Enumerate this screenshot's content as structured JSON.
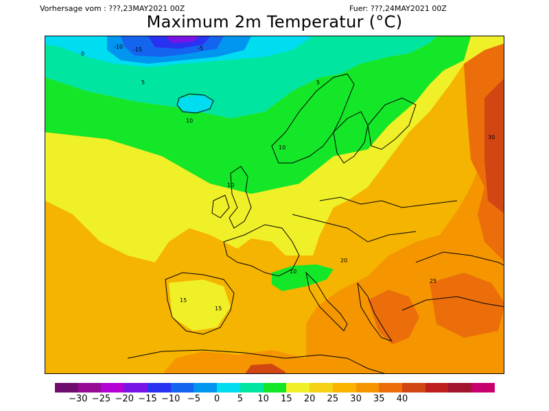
{
  "header": {
    "left": "Vorhersage vom : ???,23MAY2021 00Z",
    "right": "Fuer: ???,24MAY2021 00Z",
    "title": "Maximum 2m Temperatur (°C)"
  },
  "legend": {
    "colors": [
      "#6e0d6e",
      "#960a96",
      "#b400d2",
      "#7814e6",
      "#2832f0",
      "#1464f0",
      "#0096f0",
      "#00dcf0",
      "#00e6a0",
      "#14e628",
      "#f0f028",
      "#f5d214",
      "#fab400",
      "#f59600",
      "#eb6e0a",
      "#d24614",
      "#be1e1e",
      "#a0142d",
      "#c8006e"
    ],
    "labels": [
      "−30",
      "−25",
      "−20",
      "−15",
      "−10",
      "−5",
      "0",
      "5",
      "10",
      "15",
      "20",
      "25",
      "30",
      "35",
      "40"
    ]
  },
  "map": {
    "contour_labels": [
      "0",
      "-10",
      "-15",
      "-5",
      "5",
      "10",
      "5",
      "10",
      "10",
      "10",
      "15",
      "15",
      "20",
      "25",
      "30"
    ]
  }
}
